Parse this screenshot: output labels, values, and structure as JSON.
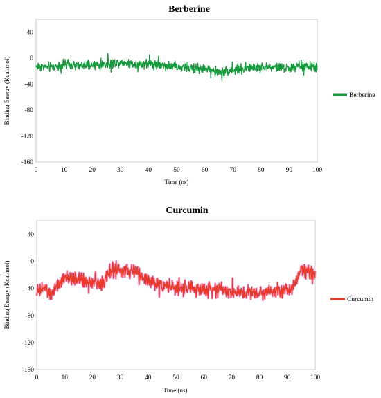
{
  "chart_data": [
    {
      "type": "line",
      "title": "Berberine",
      "xlabel": "Time (ns)",
      "ylabel": "Binding Energy (Kcal/mol)",
      "xlim": [
        0,
        100
      ],
      "ylim": [
        -160,
        60
      ],
      "xticks": [
        0,
        10,
        20,
        30,
        40,
        50,
        60,
        70,
        80,
        90,
        100
      ],
      "yticks": [
        40,
        0,
        -40,
        -80,
        -120,
        -160
      ],
      "grid": false,
      "legend": "right",
      "series": [
        {
          "name": "Berberine",
          "color": "#149a3a",
          "x": [
            0,
            5,
            10,
            15,
            20,
            25,
            30,
            35,
            40,
            45,
            50,
            55,
            60,
            65,
            70,
            75,
            80,
            85,
            90,
            95,
            100
          ],
          "y": [
            -12,
            -14,
            -10,
            -12,
            -11,
            -9,
            -6,
            -9,
            -8,
            -10,
            -14,
            -15,
            -16,
            -22,
            -18,
            -15,
            -14,
            -14,
            -15,
            -12,
            -14
          ]
        }
      ]
    },
    {
      "type": "line",
      "title": "Curcumin",
      "xlabel": "Time (ns)",
      "ylabel": "Binding Energy (Kcal/mol)",
      "xlim": [
        0,
        100
      ],
      "ylim": [
        -160,
        60
      ],
      "xticks": [
        0,
        10,
        20,
        30,
        40,
        50,
        60,
        70,
        80,
        90,
        100
      ],
      "yticks": [
        40,
        0,
        -40,
        -80,
        -120,
        -160
      ],
      "grid": false,
      "legend": "right",
      "series": [
        {
          "name": "Curcumin",
          "color": "#e8392a",
          "x": [
            0,
            3,
            5,
            8,
            10,
            15,
            20,
            23,
            25,
            27,
            30,
            35,
            40,
            45,
            50,
            55,
            60,
            65,
            70,
            75,
            80,
            85,
            90,
            93,
            95,
            97,
            100
          ],
          "y": [
            -45,
            -40,
            -50,
            -35,
            -25,
            -26,
            -30,
            -35,
            -25,
            -12,
            -15,
            -15,
            -28,
            -35,
            -40,
            -40,
            -42,
            -40,
            -45,
            -45,
            -46,
            -42,
            -45,
            -30,
            -10,
            -12,
            -20
          ]
        }
      ]
    }
  ]
}
